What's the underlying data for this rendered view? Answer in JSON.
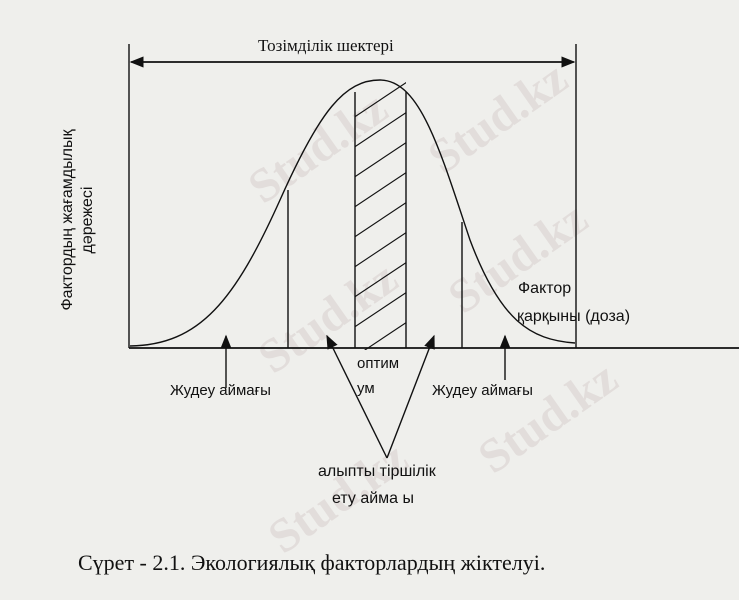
{
  "diagram": {
    "tolerance_label": "Тозімділік шектері",
    "y_axis_label_line1": "Фактордың жағамдылық",
    "y_axis_label_line2": "дәрежесі",
    "x_axis_label_line1": "Фактор",
    "x_axis_label_line2": "қарқыны (доза)",
    "optimum_line1": "оптим",
    "optimum_line2": "ум",
    "pessimum_left": "Жудеу аймағы",
    "pessimum_right": "Жудеу аймағы",
    "normal_zone_line1": "алыпты тіршілік",
    "normal_zone_line2": "ету айма  ы"
  },
  "caption": "Сүрет - 2.1. Экологиялық факторлардың жіктелуі.",
  "watermark": "Stud.kz"
}
